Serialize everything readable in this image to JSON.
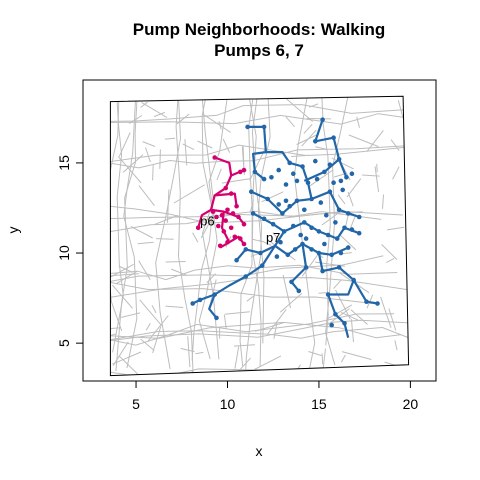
{
  "chart_data": {
    "type": "line",
    "title": "Pump Neighborhoods: Walking",
    "subtitle": "Pumps 6, 7",
    "xlabel": "x",
    "ylabel": "y",
    "xlim": [
      2.1,
      21.4
    ],
    "ylim": [
      2.9,
      19.6
    ],
    "x_ticks": [
      5,
      10,
      15,
      20
    ],
    "y_ticks": [
      5,
      10,
      15
    ],
    "x_tick_labels": [
      "5",
      "10",
      "15",
      "20"
    ],
    "y_tick_labels": [
      "5",
      "10",
      "15"
    ],
    "map_frame": [
      [
        3.6,
        18.4
      ],
      [
        19.6,
        18.7
      ],
      [
        19.9,
        3.8
      ],
      [
        3.6,
        3.2
      ]
    ],
    "series": [
      {
        "name": "p6",
        "color": "#d4006f",
        "pump": [
          8.9,
          11.8
        ],
        "segments": [
          [
            [
              9.3,
              15.3
            ],
            [
              10.1,
              15.0
            ],
            [
              10.2,
              14.3
            ],
            [
              10.9,
              14.6
            ]
          ],
          [
            [
              10.2,
              14.3
            ],
            [
              9.9,
              13.6
            ],
            [
              9.3,
              13.2
            ],
            [
              9.1,
              12.4
            ],
            [
              9.8,
              12.3
            ],
            [
              10.6,
              12.0
            ],
            [
              10.9,
              11.6
            ]
          ],
          [
            [
              9.1,
              12.4
            ],
            [
              8.6,
              12.1
            ],
            [
              8.4,
              11.4
            ]
          ],
          [
            [
              9.8,
              12.3
            ],
            [
              9.7,
              11.4
            ],
            [
              10.1,
              10.6
            ],
            [
              10.6,
              10.9
            ],
            [
              10.9,
              10.5
            ]
          ],
          [
            [
              9.3,
              13.2
            ],
            [
              10.4,
              13.3
            ],
            [
              10.5,
              12.6
            ]
          ],
          [
            [
              10.1,
              10.6
            ],
            [
              9.6,
              10.3
            ]
          ]
        ],
        "points": [
          [
            9.3,
            15.3
          ],
          [
            10.9,
            14.6
          ],
          [
            10.7,
            14.5
          ],
          [
            9.9,
            13.6
          ],
          [
            10.2,
            13.3
          ],
          [
            10.5,
            12.6
          ],
          [
            9.2,
            12.3
          ],
          [
            9.4,
            12.0
          ],
          [
            9.7,
            12.1
          ],
          [
            10.0,
            12.4
          ],
          [
            10.3,
            12.2
          ],
          [
            10.6,
            12.0
          ],
          [
            10.9,
            11.6
          ],
          [
            9.5,
            11.5
          ],
          [
            9.8,
            11.2
          ],
          [
            10.2,
            11.4
          ],
          [
            10.4,
            10.9
          ],
          [
            10.7,
            10.8
          ],
          [
            10.0,
            10.6
          ],
          [
            9.6,
            10.4
          ],
          [
            8.4,
            11.4
          ],
          [
            10.9,
            10.5
          ],
          [
            9.9,
            11.8
          ]
        ]
      },
      {
        "name": "p7",
        "color": "#2166a8",
        "pump": [
          12.5,
          10.9
        ],
        "segments": [
          [
            [
              11.1,
              17.0
            ],
            [
              12.0,
              17.0
            ],
            [
              12.1,
              15.6
            ],
            [
              11.4,
              15.5
            ],
            [
              11.5,
              14.5
            ],
            [
              12.0,
              14.1
            ]
          ],
          [
            [
              12.1,
              15.6
            ],
            [
              13.0,
              15.6
            ],
            [
              13.4,
              15.0
            ],
            [
              14.1,
              14.8
            ],
            [
              14.4,
              13.9
            ]
          ],
          [
            [
              15.2,
              17.4
            ],
            [
              14.8,
              16.2
            ],
            [
              15.8,
              16.4
            ],
            [
              16.1,
              15.2
            ],
            [
              15.3,
              14.5
            ],
            [
              14.2,
              14.0
            ]
          ],
          [
            [
              16.1,
              15.2
            ],
            [
              16.5,
              14.2
            ]
          ],
          [
            [
              14.4,
              13.9
            ],
            [
              14.6,
              13.0
            ],
            [
              15.6,
              13.4
            ],
            [
              16.1,
              12.4
            ],
            [
              17.2,
              12.0
            ]
          ],
          [
            [
              11.3,
              13.4
            ],
            [
              12.2,
              13.0
            ],
            [
              13.0,
              12.2
            ],
            [
              13.8,
              12.9
            ],
            [
              14.6,
              13.0
            ]
          ],
          [
            [
              11.4,
              12.2
            ],
            [
              12.5,
              11.6
            ],
            [
              13.1,
              11.2
            ],
            [
              14.2,
              11.7
            ],
            [
              15.0,
              11.2
            ],
            [
              16.0,
              10.8
            ],
            [
              16.4,
              11.4
            ],
            [
              17.2,
              11.1
            ]
          ],
          [
            [
              13.1,
              11.2
            ],
            [
              12.6,
              10.4
            ],
            [
              11.8,
              10.0
            ],
            [
              11.0,
              10.2
            ],
            [
              10.5,
              9.6
            ]
          ],
          [
            [
              12.6,
              10.4
            ],
            [
              13.3,
              9.9
            ],
            [
              14.1,
              10.5
            ],
            [
              15.0,
              10.0
            ],
            [
              15.7,
              9.9
            ],
            [
              16.6,
              10.3
            ]
          ],
          [
            [
              12.6,
              10.4
            ],
            [
              11.9,
              9.3
            ],
            [
              11.0,
              8.7
            ],
            [
              10.1,
              8.2
            ],
            [
              9.3,
              7.7
            ],
            [
              8.5,
              7.4
            ],
            [
              8.1,
              7.2
            ]
          ],
          [
            [
              9.3,
              7.7
            ],
            [
              9.0,
              6.9
            ],
            [
              9.4,
              6.4
            ]
          ],
          [
            [
              15.0,
              10.0
            ],
            [
              15.2,
              9.0
            ],
            [
              16.1,
              9.2
            ],
            [
              16.9,
              8.5
            ],
            [
              16.6,
              7.7
            ],
            [
              15.5,
              7.7
            ],
            [
              15.9,
              6.6
            ],
            [
              16.4,
              6.1
            ],
            [
              16.6,
              5.3
            ]
          ],
          [
            [
              16.9,
              8.5
            ],
            [
              17.6,
              7.3
            ],
            [
              18.2,
              7.2
            ]
          ],
          [
            [
              14.1,
              10.5
            ],
            [
              14.3,
              9.2
            ],
            [
              13.5,
              8.4
            ],
            [
              13.9,
              7.9
            ]
          ]
        ],
        "points": [
          [
            11.1,
            17.0
          ],
          [
            12.0,
            17.0
          ],
          [
            11.5,
            14.5
          ],
          [
            12.0,
            14.1
          ],
          [
            12.8,
            14.6
          ],
          [
            13.4,
            15.0
          ],
          [
            13.6,
            14.4
          ],
          [
            14.1,
            14.8
          ],
          [
            14.4,
            13.9
          ],
          [
            13.2,
            13.8
          ],
          [
            15.2,
            17.4
          ],
          [
            14.8,
            16.2
          ],
          [
            15.8,
            16.4
          ],
          [
            16.1,
            15.2
          ],
          [
            15.6,
            14.9
          ],
          [
            15.3,
            14.5
          ],
          [
            14.9,
            14.1
          ],
          [
            15.8,
            13.9
          ],
          [
            16.2,
            14.0
          ],
          [
            16.5,
            14.2
          ],
          [
            16.8,
            14.4
          ],
          [
            14.6,
            13.0
          ],
          [
            15.1,
            12.8
          ],
          [
            15.6,
            13.4
          ],
          [
            16.1,
            12.4
          ],
          [
            16.6,
            12.2
          ],
          [
            17.2,
            12.0
          ],
          [
            11.3,
            13.4
          ],
          [
            12.2,
            13.0
          ],
          [
            12.8,
            12.7
          ],
          [
            13.0,
            12.2
          ],
          [
            13.4,
            12.6
          ],
          [
            13.8,
            12.9
          ],
          [
            14.2,
            12.4
          ],
          [
            11.4,
            12.2
          ],
          [
            12.0,
            11.9
          ],
          [
            12.5,
            11.6
          ],
          [
            13.1,
            11.2
          ],
          [
            13.6,
            11.5
          ],
          [
            14.2,
            11.7
          ],
          [
            14.6,
            11.4
          ],
          [
            15.0,
            11.2
          ],
          [
            15.5,
            11.0
          ],
          [
            16.0,
            10.8
          ],
          [
            16.4,
            11.4
          ],
          [
            16.8,
            11.3
          ],
          [
            17.2,
            11.1
          ],
          [
            11.8,
            10.0
          ],
          [
            11.0,
            10.2
          ],
          [
            10.5,
            9.6
          ],
          [
            13.3,
            9.9
          ],
          [
            13.7,
            10.2
          ],
          [
            14.1,
            10.5
          ],
          [
            14.6,
            10.2
          ],
          [
            15.0,
            10.0
          ],
          [
            15.7,
            9.9
          ],
          [
            16.2,
            10.0
          ],
          [
            16.6,
            10.3
          ],
          [
            11.9,
            9.3
          ],
          [
            11.0,
            8.7
          ],
          [
            9.3,
            7.7
          ],
          [
            8.5,
            7.4
          ],
          [
            8.1,
            7.2
          ],
          [
            9.4,
            6.4
          ],
          [
            15.2,
            9.0
          ],
          [
            16.1,
            9.2
          ],
          [
            16.9,
            8.5
          ],
          [
            15.5,
            7.7
          ],
          [
            15.9,
            6.6
          ],
          [
            15.7,
            6.0
          ],
          [
            16.4,
            6.1
          ],
          [
            17.6,
            7.3
          ],
          [
            18.2,
            7.2
          ],
          [
            14.3,
            9.2
          ],
          [
            13.5,
            8.4
          ],
          [
            13.9,
            7.9
          ],
          [
            12.9,
            10.6
          ],
          [
            14.0,
            11.0
          ],
          [
            13.2,
            12.9
          ],
          [
            15.4,
            12.1
          ],
          [
            15.9,
            11.7
          ],
          [
            12.4,
            14.2
          ],
          [
            14.8,
            15.1
          ],
          [
            12.7,
            9.8
          ],
          [
            16.3,
            13.5
          ],
          [
            14.3,
            10.8
          ],
          [
            15.3,
            10.5
          ],
          [
            13.8,
            14.0
          ]
        ]
      }
    ]
  }
}
